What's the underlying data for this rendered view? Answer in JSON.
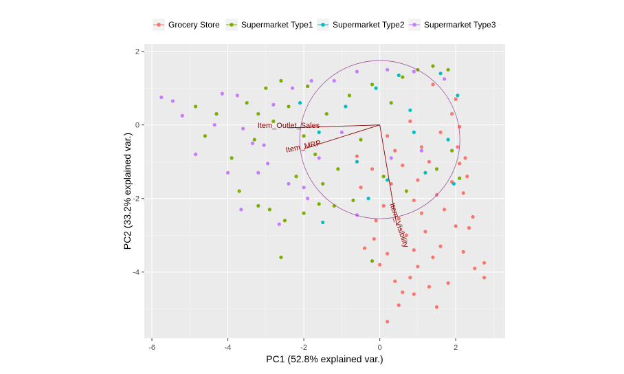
{
  "chart_data": {
    "type": "scatter",
    "xlabel": "PC1 (52.8% explained var.)",
    "ylabel": "PC2 (33.2% explained var.)",
    "xlim": [
      -6.2,
      3.3
    ],
    "ylim": [
      -5.8,
      2.2
    ],
    "x_ticks": [
      -6,
      -4,
      -2,
      0,
      2
    ],
    "y_ticks": [
      -4,
      -2,
      0,
      2
    ],
    "x_tick_labels": [
      "-6",
      "-4",
      "-2",
      "0",
      "2"
    ],
    "y_tick_labels": [
      "-4",
      "-2",
      "0",
      "2"
    ],
    "grid": true,
    "legend_position": "top",
    "series": [
      {
        "name": "Grocery Store",
        "color": "#F8766D",
        "points": [
          [
            0.2,
            -5.35
          ],
          [
            0.5,
            -4.9
          ],
          [
            1.5,
            -4.95
          ],
          [
            0.9,
            -4.6
          ],
          [
            0.6,
            -4.55
          ],
          [
            1.3,
            -4.4
          ],
          [
            1.8,
            -4.3
          ],
          [
            0.4,
            -4.25
          ],
          [
            0.8,
            -4.15
          ],
          [
            2.75,
            -4.15
          ],
          [
            2.5,
            -3.9
          ],
          [
            1.0,
            -3.85
          ],
          [
            0.0,
            -3.8
          ],
          [
            2.75,
            -3.75
          ],
          [
            1.4,
            -3.6
          ],
          [
            -0.4,
            -3.35
          ],
          [
            0.2,
            -3.5
          ],
          [
            0.9,
            -3.4
          ],
          [
            1.6,
            -3.3
          ],
          [
            2.2,
            -3.45
          ],
          [
            -0.15,
            -3.1
          ],
          [
            0.7,
            -3.0
          ],
          [
            1.2,
            -2.9
          ],
          [
            2.0,
            -2.75
          ],
          [
            2.35,
            -2.8
          ],
          [
            -0.1,
            -2.6
          ],
          [
            0.5,
            -2.55
          ],
          [
            1.1,
            -2.4
          ],
          [
            1.7,
            -2.3
          ],
          [
            2.45,
            -2.5
          ],
          [
            0.1,
            -2.2
          ],
          [
            0.9,
            -2.05
          ],
          [
            1.5,
            -1.9
          ],
          [
            2.2,
            -1.85
          ],
          [
            -0.5,
            -1.7
          ],
          [
            0.3,
            -1.6
          ],
          [
            1.0,
            -1.5
          ],
          [
            1.9,
            -1.55
          ],
          [
            2.3,
            -1.4
          ],
          [
            -0.2,
            -1.2
          ],
          [
            0.6,
            -1.1
          ],
          [
            1.3,
            -1.0
          ],
          [
            2.1,
            -1.05
          ],
          [
            2.25,
            -0.9
          ],
          [
            -0.6,
            -0.85
          ],
          [
            0.4,
            -0.7
          ],
          [
            1.1,
            -0.6
          ],
          [
            2.05,
            -0.6
          ],
          [
            0.2,
            -0.3
          ],
          [
            1.6,
            -0.2
          ],
          [
            2.1,
            -0.05
          ],
          [
            0.8,
            0.1
          ],
          [
            1.9,
            0.3
          ],
          [
            2.0,
            0.7
          ],
          [
            1.4,
            1.1
          ]
        ]
      },
      {
        "name": "Supermarket Type1",
        "color": "#7CAE00",
        "points": [
          [
            -2.6,
            -3.6
          ],
          [
            -0.2,
            -3.7
          ],
          [
            -4.85,
            0.5
          ],
          [
            -4.3,
            0.3
          ],
          [
            -4.6,
            -0.3
          ],
          [
            -3.9,
            -0.9
          ],
          [
            -3.7,
            -1.8
          ],
          [
            -3.2,
            -2.2
          ],
          [
            -2.9,
            -2.3
          ],
          [
            -2.5,
            -2.6
          ],
          [
            -2.0,
            -2.4
          ],
          [
            -1.6,
            -2.15
          ],
          [
            -1.2,
            -2.2
          ],
          [
            -0.7,
            -2.05
          ],
          [
            -3.3,
            -0.4
          ],
          [
            -2.8,
            0.1
          ],
          [
            -3.5,
            0.6
          ],
          [
            -3.0,
            1.0
          ],
          [
            -2.4,
            0.5
          ],
          [
            -2.0,
            -0.3
          ],
          [
            -1.7,
            -0.8
          ],
          [
            -1.4,
            0.3
          ],
          [
            -1.1,
            -1.2
          ],
          [
            -0.8,
            0.8
          ],
          [
            -0.5,
            -0.4
          ],
          [
            -0.2,
            1.1
          ],
          [
            0.3,
            0.6
          ],
          [
            0.6,
            1.3
          ],
          [
            1.0,
            1.5
          ],
          [
            1.4,
            1.6
          ],
          [
            1.8,
            1.5
          ],
          [
            0.1,
            -1.4
          ],
          [
            0.7,
            -1.8
          ],
          [
            1.5,
            -1.2
          ],
          [
            2.1,
            -1.45
          ],
          [
            1.9,
            -0.7
          ],
          [
            -1.9,
            1.05
          ],
          [
            -2.6,
            1.2
          ],
          [
            -3.2,
            0.3
          ],
          [
            -2.2,
            -1.4
          ],
          [
            -1.5,
            -1.6
          ]
        ]
      },
      {
        "name": "Supermarket Type2",
        "color": "#00BFC4",
        "points": [
          [
            -1.5,
            -2.65
          ],
          [
            -0.3,
            -2.0
          ],
          [
            0.2,
            -1.5
          ],
          [
            1.2,
            -1.3
          ],
          [
            1.8,
            -0.4
          ],
          [
            0.8,
            0.4
          ],
          [
            -0.1,
            1.0
          ],
          [
            0.5,
            1.35
          ],
          [
            1.6,
            1.4
          ],
          [
            -0.9,
            0.5
          ],
          [
            -1.6,
            -0.2
          ],
          [
            -2.1,
            0.6
          ],
          [
            1.95,
            -1.6
          ],
          [
            2.05,
            0.8
          ],
          [
            -0.6,
            -1.0
          ],
          [
            0.9,
            -0.2
          ]
        ]
      },
      {
        "name": "Supermarket Type3",
        "color": "#C77CFF",
        "points": [
          [
            -5.75,
            0.75
          ],
          [
            -5.45,
            0.65
          ],
          [
            -5.2,
            0.25
          ],
          [
            -4.85,
            -0.8
          ],
          [
            -4.35,
            0.0
          ],
          [
            -4.15,
            0.85
          ],
          [
            -3.75,
            0.8
          ],
          [
            -4.0,
            -1.3
          ],
          [
            -3.65,
            -2.3
          ],
          [
            -3.6,
            -0.1
          ],
          [
            -3.35,
            -0.5
          ],
          [
            -3.2,
            -1.3
          ],
          [
            -2.95,
            -1.05
          ],
          [
            -2.65,
            -2.7
          ],
          [
            -2.4,
            -1.6
          ],
          [
            -2.0,
            -1.7
          ],
          [
            -3.05,
            -0.55
          ],
          [
            -2.8,
            0.55
          ],
          [
            -2.3,
            1.0
          ],
          [
            -1.8,
            1.2
          ],
          [
            -1.2,
            1.2
          ],
          [
            -0.6,
            1.45
          ],
          [
            0.2,
            1.5
          ],
          [
            0.9,
            1.45
          ],
          [
            1.7,
            1.25
          ],
          [
            -1.0,
            -0.2
          ],
          [
            0.3,
            -0.9
          ],
          [
            1.1,
            -0.7
          ],
          [
            -1.6,
            -0.9
          ],
          [
            -0.6,
            -2.45
          ],
          [
            -1.9,
            -2.0
          ]
        ]
      }
    ],
    "loadings": [
      {
        "label": "Item_Outlet_Sales",
        "x": -2.4,
        "y": -0.08
      },
      {
        "label": "Item_MRP",
        "x": -2.0,
        "y": -0.65
      },
      {
        "label": "Item_Visibility",
        "x": 0.45,
        "y": -2.75
      }
    ],
    "loading_label_color": "#8B0000",
    "circle_color": "#A0529A"
  }
}
